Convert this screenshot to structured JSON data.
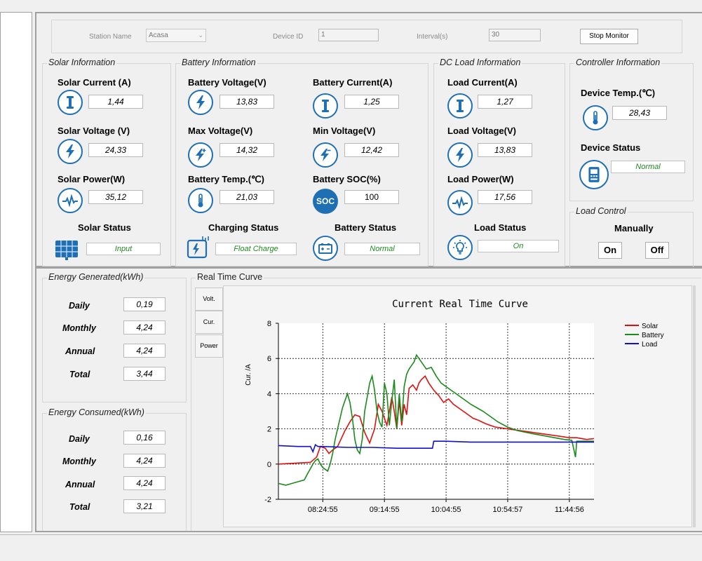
{
  "toolbar": {
    "station_label": "Station Name",
    "station_value": "Acasa",
    "device_label": "Device ID",
    "device_value": "1",
    "interval_label": "Interval(s)",
    "interval_value": "30",
    "stop_button": "Stop Monitor"
  },
  "solar": {
    "title": "Solar Information",
    "current_label": "Solar Current (A)",
    "current": "1,44",
    "voltage_label": "Solar Voltage (V)",
    "voltage": "24,33",
    "power_label": "Solar Power(W)",
    "power": "35,12",
    "status_label": "Solar Status",
    "status": "Input"
  },
  "battery": {
    "title": "Battery Information",
    "voltage_label": "Battery Voltage(V)",
    "voltage": "13,83",
    "current_label": "Battery Current(A)",
    "current": "1,25",
    "max_label": "Max Voltage(V)",
    "max": "14,32",
    "min_label": "Min Voltage(V)",
    "min": "12,42",
    "temp_label": "Battery Temp.(℃)",
    "temp": "21,03",
    "soc_label": "Battery SOC(%)",
    "soc": "100",
    "soc_icon_text": "SOC",
    "charging_label": "Charging Status",
    "charging": "Float Charge",
    "status_label": "Battery Status",
    "status": "Normal"
  },
  "load": {
    "title": "DC Load Information",
    "current_label": "Load Current(A)",
    "current": "1,27",
    "voltage_label": "Load Voltage(V)",
    "voltage": "13,83",
    "power_label": "Load Power(W)",
    "power": "17,56",
    "status_label": "Load Status",
    "status": "On"
  },
  "controller": {
    "title": "Controller Information",
    "temp_label": "Device Temp.(℃)",
    "temp": "28,43",
    "status_label": "Device Status",
    "status": "Normal"
  },
  "load_control": {
    "title": "Load Control",
    "mode": "Manually",
    "on_button": "On",
    "off_button": "Off"
  },
  "energy_generated": {
    "title": "Energy Generated(kWh)",
    "rows": [
      {
        "label": "Daily",
        "value": "0,19"
      },
      {
        "label": "Monthly",
        "value": "4,24"
      },
      {
        "label": "Annual",
        "value": "4,24"
      },
      {
        "label": "Total",
        "value": "3,44"
      }
    ]
  },
  "energy_consumed": {
    "title": "Energy Consumed(kWh)",
    "rows": [
      {
        "label": "Daily",
        "value": "0,16"
      },
      {
        "label": "Monthly",
        "value": "4,24"
      },
      {
        "label": "Annual",
        "value": "4,24"
      },
      {
        "label": "Total",
        "value": "3,21"
      }
    ]
  },
  "curve": {
    "group_title": "Real Time Curve",
    "tabs": [
      "Volt.",
      "Cur.",
      "Power"
    ]
  },
  "icons": {
    "current": "current-i-icon",
    "voltage": "lightning-icon",
    "power": "pulse-icon",
    "temperature": "thermometer-icon",
    "solar_panel": "solar-panel-icon",
    "charging": "charging-icon",
    "battery": "battery-icon",
    "bulb": "lightbulb-icon",
    "device": "controller-device-icon"
  },
  "colors": {
    "icon_blue": "#1f6fb5",
    "status_green": "#1f8a1f",
    "solar": "#e01010",
    "battery": "#1a8a1a",
    "load": "#1010d0"
  },
  "chart_data": {
    "type": "line",
    "title": "Current Real Time Curve",
    "ylabel": "Cur. /A",
    "xlabel": "",
    "x_ticks": [
      "08:24:55",
      "09:14:55",
      "10:04:55",
      "10:54:57",
      "11:44:56"
    ],
    "ylim": [
      -2,
      8
    ],
    "y_ticks": [
      -2,
      0,
      2,
      4,
      6,
      8
    ],
    "grid": true,
    "legend": "top-right",
    "x_unit": "minutes after 08:24:55",
    "xlim": [
      -36,
      220
    ],
    "series": [
      {
        "name": "Solar",
        "color": "#e01010",
        "x": [
          -36,
          -10,
          -5,
          -2,
          2,
          5,
          8,
          12,
          14,
          18,
          22,
          26,
          30,
          34,
          38,
          42,
          45,
          48,
          52,
          56,
          58,
          60,
          62,
          64,
          66,
          68,
          70,
          73,
          76,
          78,
          80,
          83,
          86,
          90,
          94,
          98,
          102,
          106,
          110,
          114,
          118,
          122,
          126,
          132,
          140,
          150,
          160,
          170,
          180,
          190,
          200,
          206,
          210,
          214,
          220
        ],
        "values": [
          0,
          0.1,
          0.4,
          1.0,
          0.9,
          0.6,
          0.8,
          1.0,
          1.3,
          1.9,
          2.4,
          2.8,
          2.7,
          1.8,
          1.2,
          2.0,
          3.4,
          3.0,
          2.2,
          3.8,
          3.0,
          2.0,
          3.6,
          2.2,
          3.4,
          2.8,
          4.3,
          4.5,
          4.2,
          4.6,
          4.8,
          5.0,
          4.6,
          4.2,
          3.9,
          3.5,
          3.7,
          3.4,
          3.2,
          3.0,
          2.8,
          2.6,
          2.5,
          2.3,
          2.1,
          2.0,
          1.9,
          1.8,
          1.7,
          1.6,
          1.5,
          1.5,
          1.45,
          1.4,
          1.45
        ]
      },
      {
        "name": "Battery",
        "color": "#1a8a1a",
        "x": [
          -36,
          -30,
          -25,
          -20,
          -15,
          -12,
          -8,
          -6,
          -4,
          -2,
          0,
          2,
          4,
          6,
          8,
          10,
          12,
          14,
          16,
          18,
          20,
          22,
          24,
          26,
          28,
          30,
          32,
          34,
          36,
          38,
          40,
          42,
          44,
          46,
          48,
          50,
          52,
          54,
          56,
          58,
          60,
          62,
          64,
          66,
          68,
          70,
          72,
          74,
          76,
          78,
          80,
          84,
          88,
          92,
          96,
          100,
          104,
          108,
          112,
          116,
          120,
          125,
          130,
          136,
          142,
          150,
          158,
          165,
          172,
          180,
          188,
          196,
          202,
          205,
          206,
          208,
          212,
          216,
          220
        ],
        "values": [
          -1.1,
          -1.2,
          -1.1,
          -1.0,
          -0.9,
          -0.5,
          0.0,
          0.2,
          0.3,
          0.0,
          -0.2,
          -0.3,
          -0.4,
          0.0,
          0.6,
          1.4,
          2.0,
          2.6,
          3.2,
          3.6,
          4.0,
          3.5,
          2.6,
          1.4,
          0.8,
          0.6,
          1.4,
          3.0,
          3.8,
          4.6,
          5.0,
          4.2,
          3.0,
          2.4,
          2.1,
          4.6,
          4.0,
          2.2,
          3.6,
          4.8,
          2.0,
          4.0,
          2.4,
          4.4,
          5.1,
          5.4,
          5.6,
          5.8,
          6.2,
          6.0,
          5.8,
          5.4,
          5.5,
          5.0,
          4.6,
          4.4,
          4.2,
          4.0,
          3.8,
          3.6,
          3.4,
          3.2,
          3.0,
          2.7,
          2.4,
          2.1,
          1.9,
          1.8,
          1.7,
          1.6,
          1.5,
          1.4,
          1.35,
          0.4,
          1.3,
          1.3,
          1.3,
          1.3,
          1.3
        ]
      },
      {
        "name": "Load",
        "color": "#1010d0",
        "x": [
          -36,
          -20,
          -10,
          -8,
          -6,
          -4,
          0,
          20,
          40,
          60,
          80,
          89,
          90,
          92,
          100,
          120,
          140,
          160,
          180,
          200,
          220
        ],
        "values": [
          1.05,
          1.0,
          1.0,
          0.7,
          1.1,
          1.0,
          1.0,
          0.95,
          0.95,
          0.9,
          0.9,
          0.9,
          1.3,
          1.3,
          1.3,
          1.25,
          1.25,
          1.25,
          1.25,
          1.25,
          1.25
        ]
      }
    ]
  }
}
